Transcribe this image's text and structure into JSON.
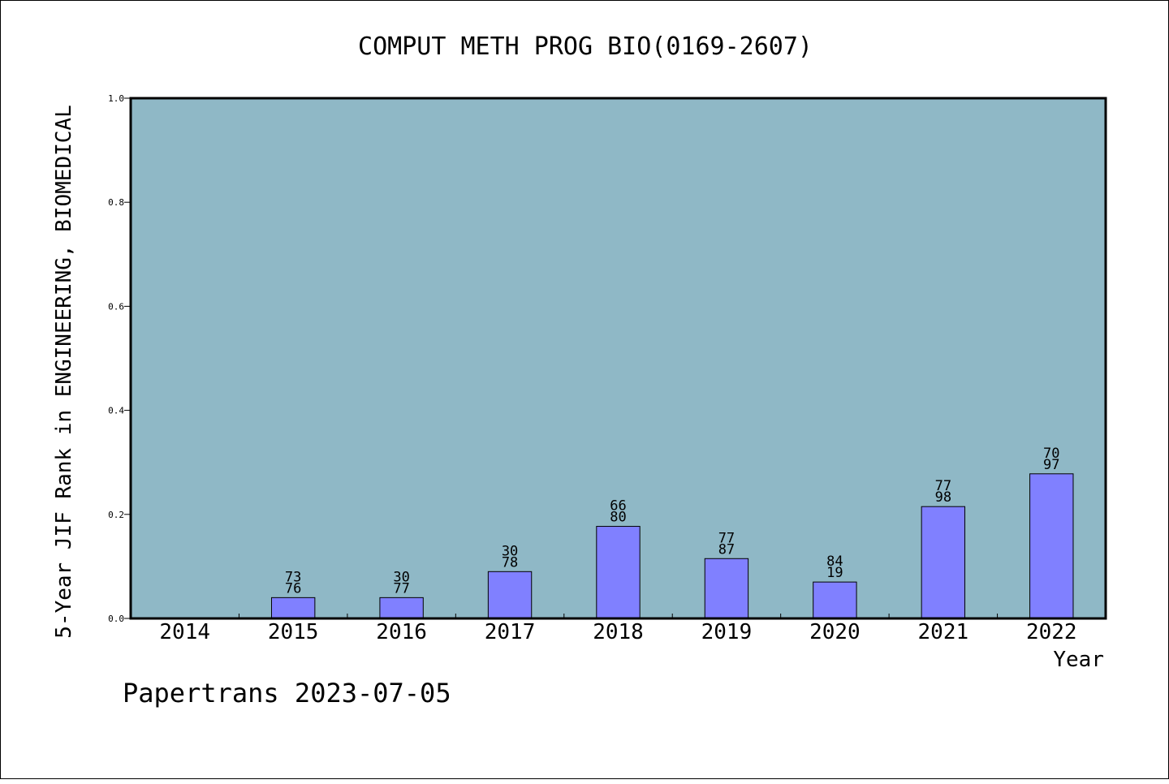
{
  "chart_data": {
    "type": "bar",
    "title": "COMPUT METH PROG BIO(0169-2607)",
    "xlabel": "Year",
    "ylabel": "5-Year JIF Rank in ENGINEERING, BIOMEDICAL",
    "ylim": [
      0.0,
      1.0
    ],
    "yticks": [
      "0.0",
      "0.2",
      "0.4",
      "0.6",
      "0.8",
      "1.0"
    ],
    "categories": [
      "2014",
      "2015",
      "2016",
      "2017",
      "2018",
      "2019",
      "2020",
      "2021",
      "2022"
    ],
    "values": [
      null,
      0.04,
      0.04,
      0.09,
      0.177,
      0.115,
      0.07,
      0.215,
      0.278
    ],
    "bar_labels": [
      null,
      [
        "73",
        "76"
      ],
      [
        "30",
        "77"
      ],
      [
        "30",
        "78"
      ],
      [
        "66",
        "80"
      ],
      [
        "77",
        "87"
      ],
      [
        "84",
        "19"
      ],
      [
        "77",
        "98"
      ],
      [
        "70",
        "97"
      ]
    ],
    "grid": false,
    "colors": {
      "plot_bg": "#8fb8c6",
      "bar": "#8080ff",
      "bar_edge": "#000000"
    }
  },
  "footer": {
    "text": "Papertrans 2023-07-05"
  }
}
